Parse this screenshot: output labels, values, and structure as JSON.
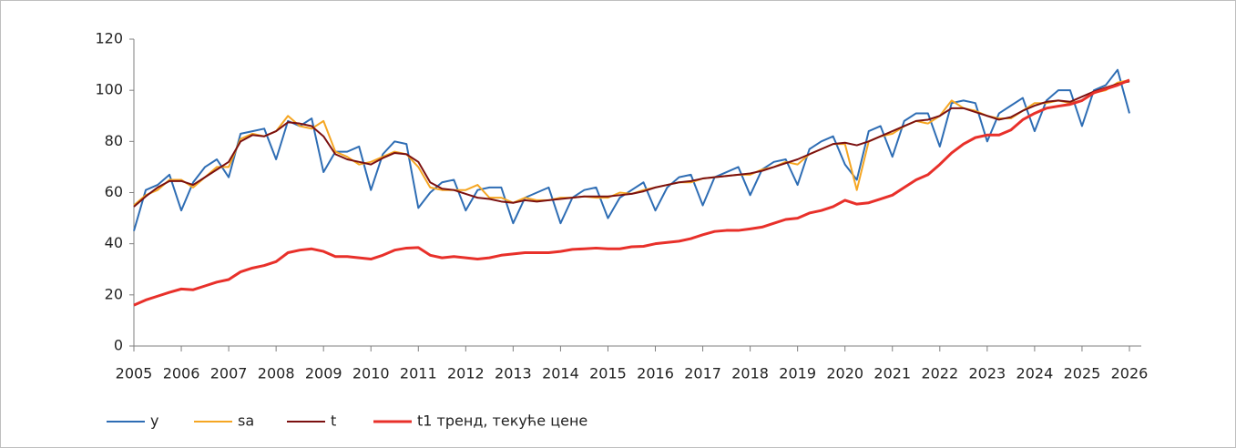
{
  "chart_data": {
    "type": "line",
    "x": [
      2005,
      2005.25,
      2005.5,
      2005.75,
      2006,
      2006.25,
      2006.5,
      2006.75,
      2007,
      2007.25,
      2007.5,
      2007.75,
      2008,
      2008.25,
      2008.5,
      2008.75,
      2009,
      2009.25,
      2009.5,
      2009.75,
      2010,
      2010.25,
      2010.5,
      2010.75,
      2011,
      2011.25,
      2011.5,
      2011.75,
      2012,
      2012.25,
      2012.5,
      2012.75,
      2013,
      2013.25,
      2013.5,
      2013.75,
      2014,
      2014.25,
      2014.5,
      2014.75,
      2015,
      2015.25,
      2015.5,
      2015.75,
      2016,
      2016.25,
      2016.5,
      2016.75,
      2017,
      2017.25,
      2017.5,
      2017.75,
      2018,
      2018.25,
      2018.5,
      2018.75,
      2019,
      2019.25,
      2019.5,
      2019.75,
      2020,
      2020.25,
      2020.5,
      2020.75,
      2021,
      2021.25,
      2021.5,
      2021.75,
      2022,
      2022.25,
      2022.5,
      2022.75,
      2023,
      2023.25,
      2023.5,
      2023.75,
      2024,
      2024.25,
      2024.5,
      2024.75,
      2025,
      2025.25,
      2025.5,
      2025.75,
      2026
    ],
    "series": [
      {
        "name": "y",
        "color": "#2e6db4",
        "values": [
          45,
          61,
          63,
          67,
          53,
          64,
          70,
          73,
          66,
          83,
          84,
          85,
          73,
          88,
          86,
          89,
          68,
          76,
          76,
          78,
          61,
          75,
          80,
          79,
          54,
          60,
          64,
          65,
          53,
          61,
          62,
          62,
          48,
          58,
          60,
          62,
          48,
          58,
          61,
          62,
          50,
          58,
          61,
          64,
          53,
          62,
          66,
          67,
          55,
          66,
          68,
          70,
          59,
          69,
          72,
          73,
          63,
          77,
          80,
          82,
          71,
          65,
          84,
          86,
          74,
          88,
          91,
          91,
          78,
          95,
          96,
          95,
          80,
          91,
          94,
          97,
          84,
          96,
          100,
          100,
          86,
          100,
          102,
          108,
          91
        ]
      },
      {
        "name": "sa",
        "color": "#f5a623",
        "values": [
          55,
          59,
          61,
          65,
          65,
          62,
          66,
          70,
          70,
          81,
          83,
          82,
          84,
          90,
          86,
          85,
          88,
          76,
          74,
          71,
          72,
          74,
          76,
          75,
          70,
          62,
          61,
          61,
          61,
          63,
          58,
          58,
          56,
          58,
          57,
          57,
          58,
          58,
          58.5,
          58,
          58,
          60,
          59.5,
          61,
          62,
          63,
          64,
          64,
          65.5,
          66,
          66.5,
          67,
          67,
          69,
          70,
          72,
          71,
          75,
          77,
          79,
          79,
          61,
          80,
          82,
          83,
          86,
          88,
          87,
          90,
          96,
          93,
          92,
          90,
          89,
          89,
          92,
          95,
          95,
          96,
          95,
          96,
          99,
          100,
          103,
          104
        ]
      },
      {
        "name": "t",
        "color": "#7b1010",
        "values": [
          54.5,
          58.5,
          62,
          64.5,
          64.5,
          63,
          66,
          69,
          72,
          80,
          82.5,
          82,
          84,
          87.5,
          87,
          86,
          82,
          75,
          73,
          72,
          71,
          73.5,
          75.5,
          75,
          72,
          64,
          61.5,
          61,
          59.5,
          58,
          57.5,
          56.5,
          56,
          57,
          56.5,
          57,
          57.5,
          58,
          58.5,
          58.5,
          58.5,
          59,
          59.5,
          60.5,
          62,
          63,
          64,
          64.5,
          65.5,
          66,
          66.5,
          67,
          67.5,
          68.5,
          70,
          71.5,
          73,
          75,
          77,
          79,
          79.5,
          78.5,
          80,
          82,
          84,
          86,
          88,
          88.5,
          90,
          93,
          93,
          91.5,
          90,
          88.5,
          89.5,
          92,
          94,
          95.5,
          96,
          95.5,
          97.5,
          99.5,
          101,
          102.5,
          103.5
        ]
      },
      {
        "name": "t1 тренд, текуће цене",
        "color": "#e8302a",
        "values": [
          16,
          18,
          19.5,
          21,
          22.3,
          22,
          23.5,
          25,
          26,
          29,
          30.5,
          31.5,
          33,
          36.5,
          37.5,
          38,
          37,
          35,
          35,
          34.5,
          34,
          35.5,
          37.5,
          38.3,
          38.5,
          35.5,
          34.5,
          35,
          34.5,
          34,
          34.5,
          35.5,
          36,
          36.5,
          36.5,
          36.5,
          37,
          37.8,
          38,
          38.3,
          38,
          38,
          38.8,
          39,
          40,
          40.5,
          41,
          42,
          43.5,
          44.8,
          45.2,
          45.2,
          45.8,
          46.5,
          48,
          49.5,
          50,
          52,
          53,
          54.5,
          57,
          55.5,
          56,
          57.5,
          59,
          62,
          65,
          67,
          71,
          75.5,
          79,
          81.5,
          82.5,
          82.5,
          84.5,
          88.5,
          91,
          93,
          93.8,
          94.5,
          96,
          99,
          100.5,
          102,
          104
        ]
      }
    ],
    "xlim": [
      2005,
      2026.25
    ],
    "xticks": [
      2005,
      2006,
      2007,
      2008,
      2009,
      2010,
      2011,
      2012,
      2013,
      2014,
      2015,
      2016,
      2017,
      2018,
      2019,
      2020,
      2021,
      2022,
      2023,
      2024,
      2025,
      2026
    ],
    "ylim": [
      0,
      120
    ],
    "yticks": [
      0,
      20,
      40,
      60,
      80,
      100,
      120
    ]
  }
}
